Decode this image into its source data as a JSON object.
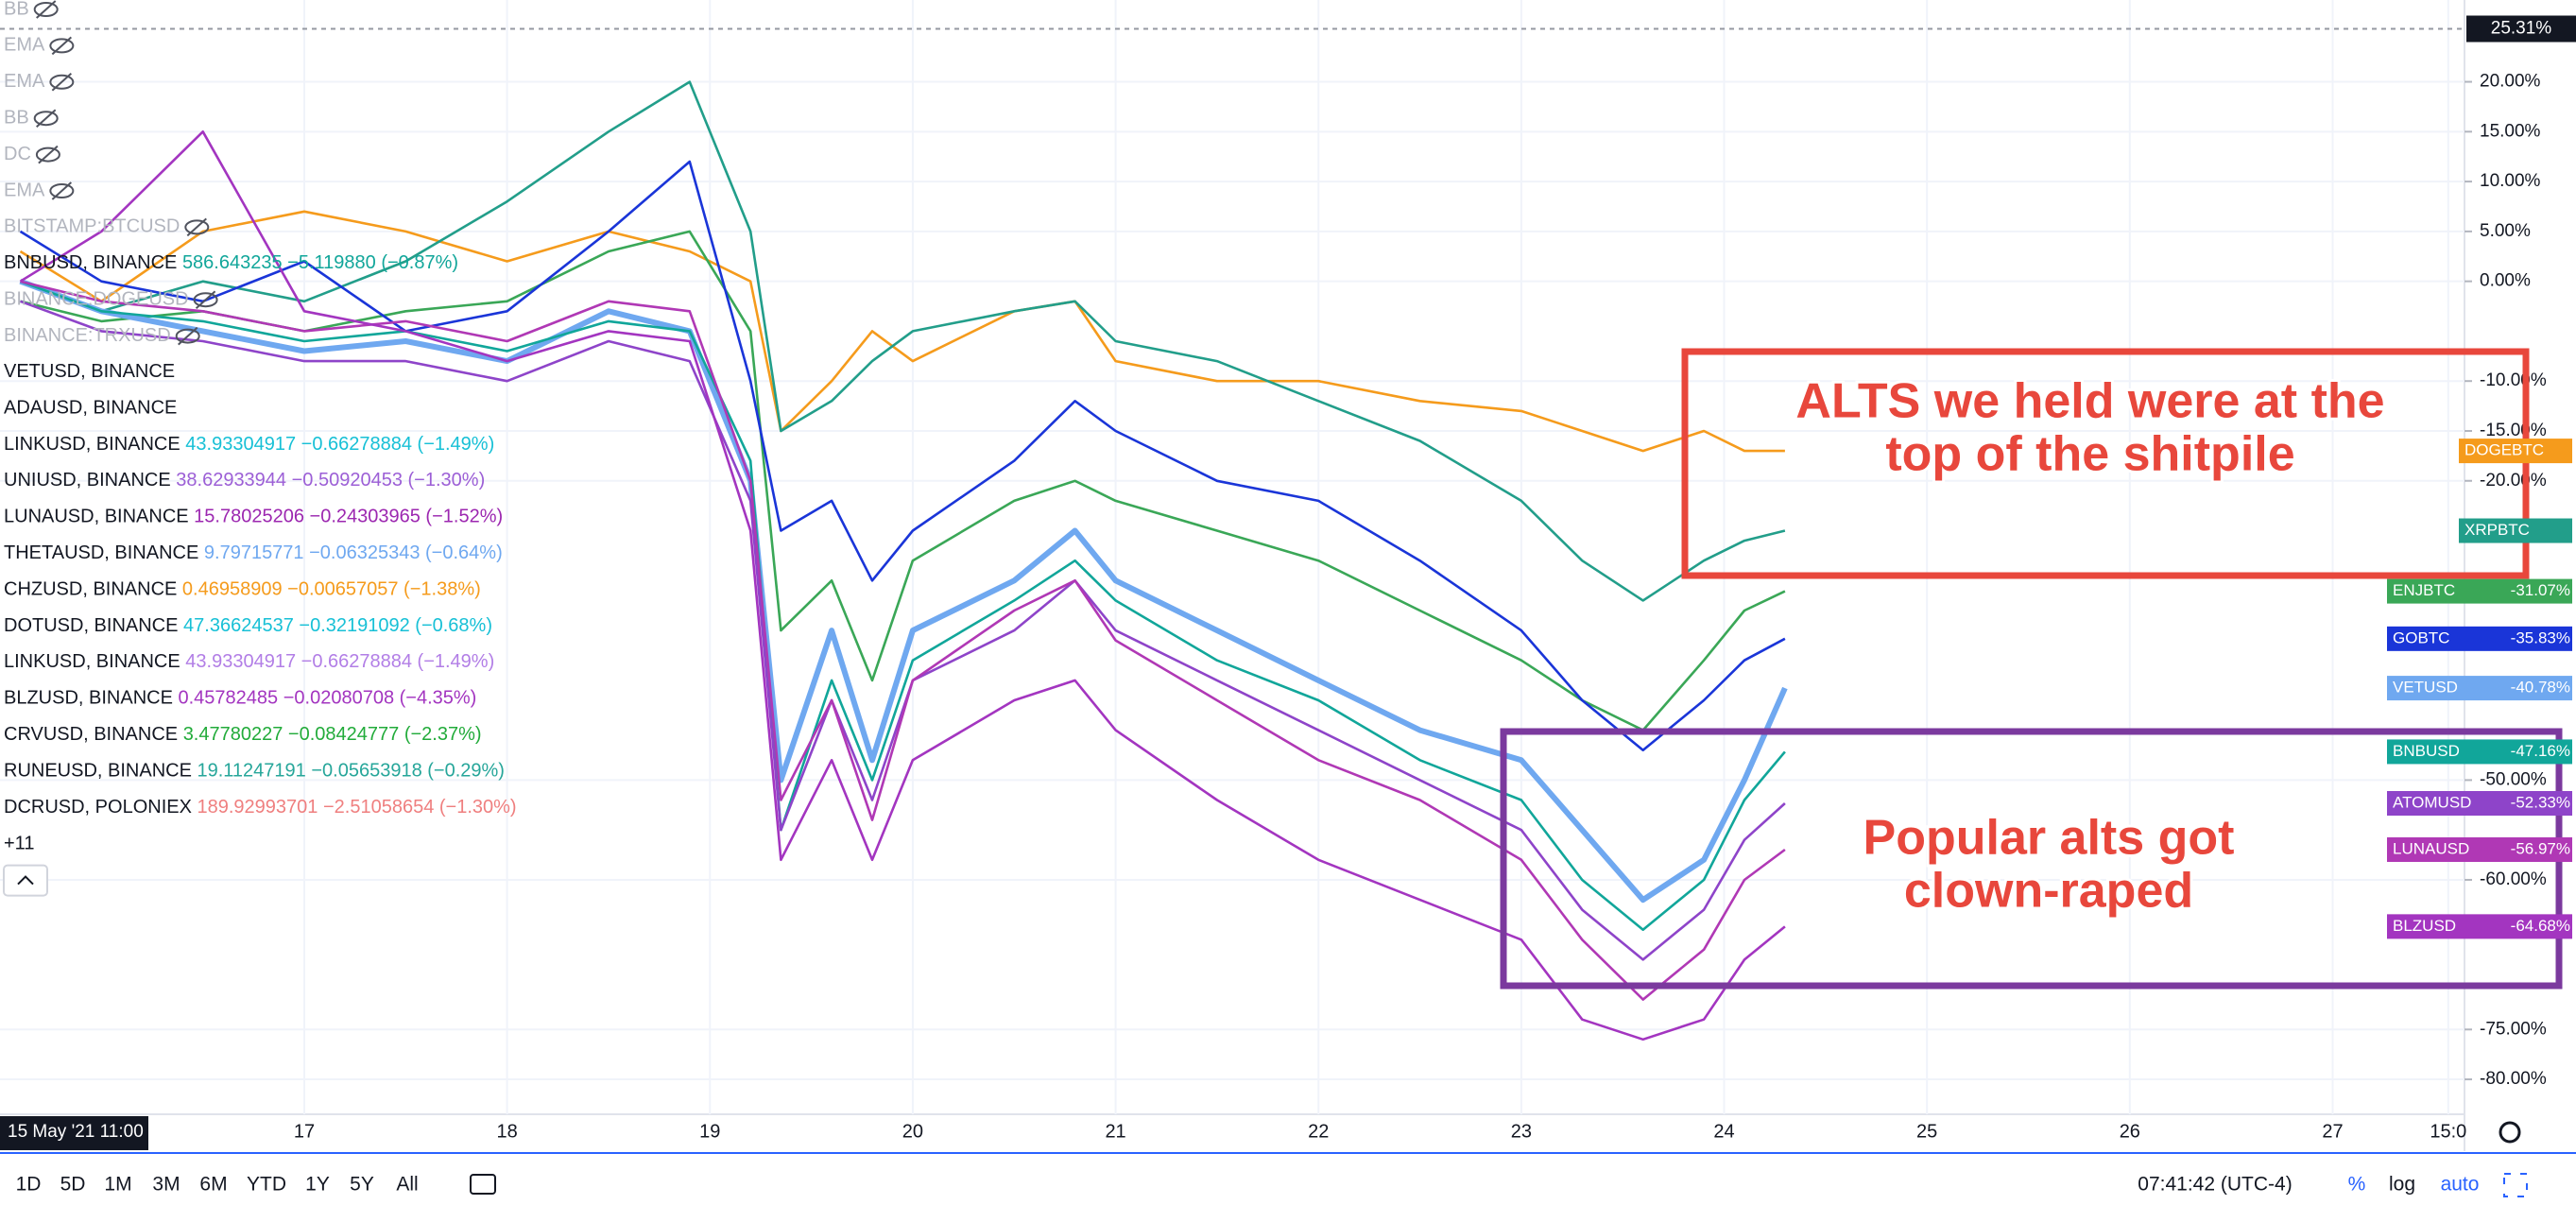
{
  "chart_data": {
    "type": "line",
    "crosshair_label": "15 May '21  11:00",
    "x": [
      15.6,
      16,
      16.5,
      17,
      17.5,
      18,
      18.5,
      18.9,
      19.2,
      19.35,
      19.6,
      19.8,
      20,
      20.5,
      20.8,
      21,
      21.5,
      22,
      22.5,
      23,
      23.3,
      23.6,
      23.9,
      24.1,
      24.3
    ],
    "xlim": [
      15.5,
      27.65
    ],
    "xticks": [
      17,
      18,
      19,
      20,
      21,
      22,
      23,
      24,
      25,
      26,
      27,
      {
        "value": 27.57,
        "label": "15:0"
      }
    ],
    "ylim": [
      -83.5,
      28.2
    ],
    "yticks": [
      {
        "value": 20,
        "label": "20.00%"
      },
      {
        "value": 15,
        "label": "15.00%"
      },
      {
        "value": 10,
        "label": "10.00%"
      },
      {
        "value": 5,
        "label": "5.00%"
      },
      {
        "value": 0,
        "label": "0.00%"
      },
      {
        "value": -10,
        "label": "-10.00%"
      },
      {
        "value": -15,
        "label": "-15.00%"
      },
      {
        "value": -20,
        "label": "-20.00%"
      },
      {
        "value": -50,
        "label": "-50.00%"
      },
      {
        "value": -60,
        "label": "-60.00%"
      },
      {
        "value": -75,
        "label": "-75.00%"
      },
      {
        "value": -80,
        "label": "-80.00%"
      }
    ],
    "top_marker": {
      "value": 25.31,
      "label": "25.31%"
    },
    "grid": true,
    "series": [
      {
        "name": "DOGEBTC",
        "color": "#f59b1c",
        "values": [
          3,
          -2,
          5,
          7,
          5,
          2,
          5,
          3,
          0,
          -15,
          -10,
          -5,
          -8,
          -3,
          -2,
          -8,
          -10,
          -10,
          -12,
          -13,
          -15,
          -17,
          -15,
          -17,
          -17
        ]
      },
      {
        "name": "XRPBTC",
        "color": "#229e8a",
        "values": [
          0,
          -3,
          0,
          -2,
          2,
          8,
          15,
          20,
          5,
          -15,
          -12,
          -8,
          -5,
          -3,
          -2,
          -6,
          -8,
          -12,
          -16,
          -22,
          -28,
          -32,
          -28,
          -26,
          -25
        ]
      },
      {
        "name": "ENJBTC",
        "color": "#3aa757",
        "end_label": "-31.07%",
        "values": [
          -2,
          -4,
          -3,
          -5,
          -3,
          -2,
          3,
          5,
          -5,
          -35,
          -30,
          -40,
          -28,
          -22,
          -20,
          -22,
          -25,
          -28,
          -33,
          -38,
          -42,
          -45,
          -38,
          -33,
          -31.07
        ]
      },
      {
        "name": "GOBTC",
        "color": "#1a35d8",
        "end_label": "-35.83%",
        "values": [
          5,
          0,
          -2,
          2,
          -5,
          -3,
          5,
          12,
          -10,
          -25,
          -22,
          -30,
          -25,
          -18,
          -12,
          -15,
          -20,
          -22,
          -28,
          -35,
          -42,
          -47,
          -42,
          -38,
          -35.83
        ]
      },
      {
        "name": "VETUSD",
        "color": "#6fa8f0",
        "end_label": "-40.78%",
        "values": [
          0,
          -3,
          -5,
          -7,
          -6,
          -8,
          -3,
          -5,
          -20,
          -50,
          -35,
          -48,
          -35,
          -30,
          -25,
          -30,
          -35,
          -40,
          -45,
          -48,
          -55,
          -62,
          -58,
          -50,
          -40.78
        ]
      },
      {
        "name": "BNBUSD",
        "color": "#11a69a",
        "end_label": "-47.16%",
        "values": [
          0,
          -3,
          -4,
          -6,
          -5,
          -7,
          -4,
          -5,
          -18,
          -55,
          -40,
          -50,
          -38,
          -32,
          -28,
          -32,
          -38,
          -42,
          -48,
          -52,
          -60,
          -65,
          -60,
          -52,
          -47.16
        ]
      },
      {
        "name": "ATOMUSD",
        "color": "#8e44c9",
        "end_label": "-52.33%",
        "values": [
          -2,
          -5,
          -6,
          -8,
          -8,
          -10,
          -6,
          -8,
          -22,
          -55,
          -42,
          -52,
          -40,
          -35,
          -30,
          -35,
          -40,
          -45,
          -50,
          -55,
          -63,
          -68,
          -63,
          -56,
          -52.33
        ]
      },
      {
        "name": "LUNAUSD",
        "color": "#b038b5",
        "end_label": "-56.97%",
        "values": [
          0,
          -2,
          -3,
          -5,
          -4,
          -6,
          -2,
          -3,
          -20,
          -52,
          -42,
          -54,
          -40,
          -33,
          -30,
          -36,
          -42,
          -48,
          -52,
          -58,
          -66,
          -72,
          -67,
          -60,
          -56.97
        ]
      },
      {
        "name": "BLZUSD",
        "color": "#a335c0",
        "end_label": "-64.68%",
        "values": [
          0,
          5,
          15,
          -3,
          -5,
          -8,
          -5,
          -6,
          -25,
          -58,
          -48,
          -58,
          -48,
          -42,
          -40,
          -45,
          -52,
          -58,
          -62,
          -66,
          -74,
          -76,
          -74,
          -68,
          -64.68
        ]
      }
    ]
  },
  "legend": {
    "hidden": [
      "BB",
      "EMA",
      "EMA",
      "BB",
      "DC",
      "EMA",
      "BITSTAMP:BTCUSD",
      "BINANCE:DOGEUSD",
      "BINANCE:TRXUSD"
    ],
    "entries": [
      {
        "symbol": "BNBUSD, BINANCE",
        "price": "586.643235",
        "change": "−5.119880 (−0.87%)",
        "color": "#11a69a"
      },
      {
        "symbol": "VETUSD, BINANCE",
        "color": "#6fa8f0"
      },
      {
        "symbol": "ADAUSD, BINANCE",
        "color": "#f59b1c"
      },
      {
        "symbol": "LINKUSD, BINANCE",
        "price": "43.93304917",
        "change": "−0.66278884 (−1.49%)",
        "color": "#17c0d6"
      },
      {
        "symbol": "UNIUSD, BINANCE",
        "price": "38.62933944",
        "change": "−0.50920453 (−1.30%)",
        "color": "#9c5fd6"
      },
      {
        "symbol": "LUNAUSD, BINANCE",
        "price": "15.78025206",
        "change": "−0.24303965 (−1.52%)",
        "color": "#9c27b0"
      },
      {
        "symbol": "THETAUSD, BINANCE",
        "price": "9.79715771",
        "change": "−0.06325343 (−0.64%)",
        "color": "#6fa8f0"
      },
      {
        "symbol": "CHZUSD, BINANCE",
        "price": "0.46958909",
        "change": "−0.00657057 (−1.38%)",
        "color": "#f59b1c"
      },
      {
        "symbol": "DOTUSD, BINANCE",
        "price": "47.36624537",
        "change": "−0.32191092 (−0.68%)",
        "color": "#17c0d6"
      },
      {
        "symbol": "LINKUSD, BINANCE",
        "price": "43.93304917",
        "change": "−0.66278884 (−1.49%)",
        "color": "#b27ee6"
      },
      {
        "symbol": "BLZUSD, BINANCE",
        "price": "0.45782485",
        "change": "−0.02080708 (−4.35%)",
        "color": "#a335c0"
      },
      {
        "symbol": "CRVUSD, BINANCE",
        "price": "3.47780227",
        "change": "−0.08424777 (−2.37%)",
        "color": "#22ab3a"
      },
      {
        "symbol": "RUNEUSD, BINANCE",
        "price": "19.11247191",
        "change": "−0.05653918 (−0.29%)",
        "color": "#26a69a"
      },
      {
        "symbol": "DCRUSD, POLONIEX",
        "price": "189.92993701",
        "change": "−2.51058654 (−1.30%)",
        "color": "#ef7f7f"
      }
    ],
    "more": "+11"
  },
  "annotations": [
    {
      "lines": [
        "ALTS we held were at the",
        "top of the shitpile"
      ]
    },
    {
      "lines": [
        "Popular alts got",
        "clown-raped"
      ]
    }
  ],
  "toolbar": {
    "ranges": [
      "1D",
      "5D",
      "1M",
      "3M",
      "6M",
      "YTD",
      "1Y",
      "5Y",
      "All"
    ],
    "clock": "07:41:42 (UTC-4)",
    "percent": "%",
    "log": "log",
    "auto": "auto"
  }
}
